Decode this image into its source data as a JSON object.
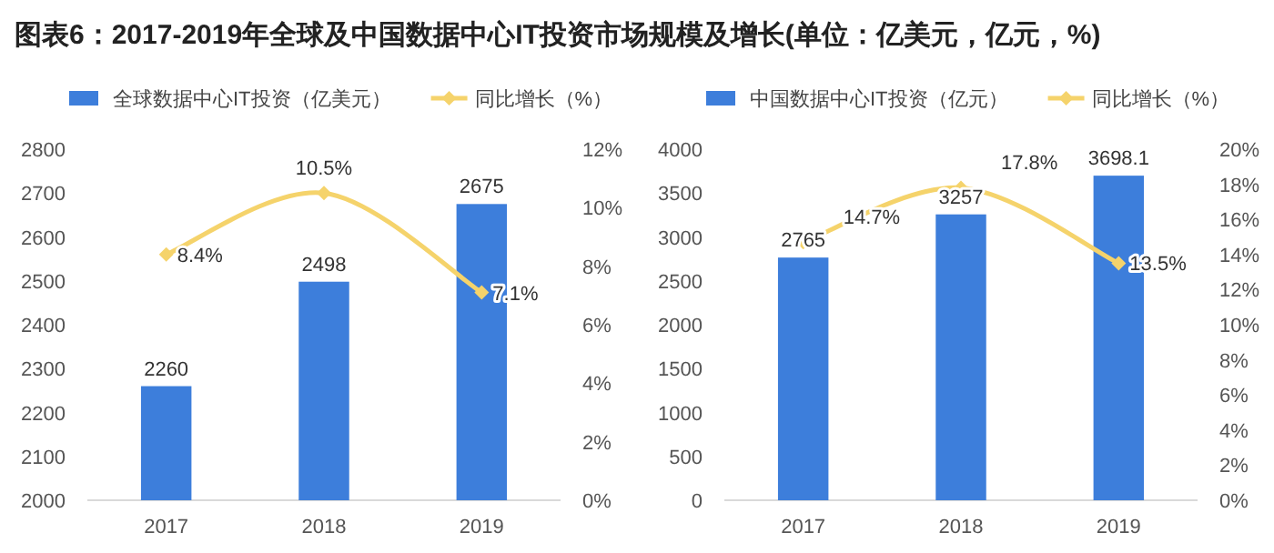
{
  "chart_data": [
    {
      "type": "bar",
      "title": "图表6：2017-2019年全球及中国数据中心IT投资市场规模及增长(单位：亿美元，亿元，%)",
      "categories": [
        "2017",
        "2018",
        "2019"
      ],
      "series": [
        {
          "name": "全球数据中心IT投资（亿美元）",
          "color": "#3d7edb",
          "values": [
            2260,
            2498,
            2675
          ]
        },
        {
          "name": "同比增长（%）",
          "type": "line",
          "axis": "y2",
          "color": "#f5d36b",
          "marker": "diamond",
          "values": [
            8.4,
            10.5,
            7.1
          ],
          "value_labels": [
            "8.4%",
            "10.5%",
            "7.1%"
          ]
        }
      ],
      "ylim": [
        2000,
        2800
      ],
      "yticks": [
        2000,
        2100,
        2200,
        2300,
        2400,
        2500,
        2600,
        2700,
        2800
      ],
      "y2lim": [
        0,
        12
      ],
      "y2ticks": [
        {
          "value": 0,
          "label": "0%"
        },
        {
          "value": 2,
          "label": "2%"
        },
        {
          "value": 4,
          "label": "4%"
        },
        {
          "value": 6,
          "label": "6%"
        },
        {
          "value": 8,
          "label": "8%"
        },
        {
          "value": 10,
          "label": "10%"
        },
        {
          "value": 12,
          "label": "12%"
        }
      ],
      "data_labels": true,
      "legend": "top",
      "grid": false
    },
    {
      "type": "bar",
      "categories": [
        "2017",
        "2018",
        "2019"
      ],
      "series": [
        {
          "name": "中国数据中心IT投资（亿元）",
          "color": "#3d7edb",
          "values": [
            2765,
            3257,
            3698.1
          ]
        },
        {
          "name": "同比增长（%）",
          "type": "line",
          "axis": "y2",
          "color": "#f5d36b",
          "marker": "diamond",
          "values": [
            14.7,
            17.8,
            13.5
          ],
          "value_labels": [
            "14.7%",
            "17.8%",
            "13.5%"
          ]
        }
      ],
      "ylim": [
        0,
        4000
      ],
      "yticks": [
        0,
        500,
        1000,
        1500,
        2000,
        2500,
        3000,
        3500,
        4000
      ],
      "y2lim": [
        0,
        20
      ],
      "y2ticks": [
        {
          "value": 0,
          "label": "0%"
        },
        {
          "value": 2,
          "label": "2%"
        },
        {
          "value": 4,
          "label": "4%"
        },
        {
          "value": 6,
          "label": "6%"
        },
        {
          "value": 8,
          "label": "8%"
        },
        {
          "value": 10,
          "label": "10%"
        },
        {
          "value": 12,
          "label": "12%"
        },
        {
          "value": 14,
          "label": "14%"
        },
        {
          "value": 16,
          "label": "16%"
        },
        {
          "value": 18,
          "label": "18%"
        },
        {
          "value": 20,
          "label": "20%"
        }
      ],
      "data_labels": true,
      "legend": "top",
      "grid": false
    }
  ]
}
